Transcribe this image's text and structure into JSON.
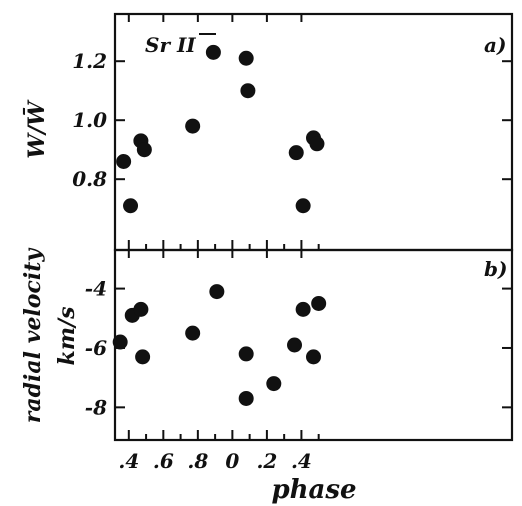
{
  "chart_data": [
    {
      "type": "scatter",
      "panel_label": "a)",
      "annotation": "Sr II",
      "ylabel": "W/W̄",
      "xlabel": "phase",
      "yticks": [
        "1.2",
        "1.0",
        "0.8"
      ],
      "ytick_values": [
        1.2,
        1.0,
        0.8
      ],
      "ylim": [
        0.56,
        1.36
      ],
      "xlim": [
        0.32,
        2.62
      ],
      "xticks": [
        ".4",
        ".6",
        ".8",
        "0",
        ".2",
        ".4"
      ],
      "xtick_values": [
        0.4,
        0.6,
        0.8,
        1.0,
        1.2,
        1.4
      ],
      "minor_xtick_values": [
        0.5,
        0.7,
        0.9,
        1.1,
        1.3,
        1.5
      ],
      "x": [
        0.37,
        0.41,
        0.47,
        0.49,
        0.77,
        0.89,
        1.08,
        1.09,
        1.37,
        1.41,
        1.47,
        1.49
      ],
      "y": [
        0.86,
        0.71,
        0.93,
        0.9,
        0.98,
        1.23,
        1.21,
        1.1,
        0.89,
        0.71,
        0.94,
        0.92
      ]
    },
    {
      "type": "scatter",
      "panel_label": "b)",
      "ylabel": "radial velocity",
      "ylabel2": "km/s",
      "xlabel": "phase",
      "yticks": [
        "-4",
        "-6",
        "-8"
      ],
      "ytick_values": [
        -4,
        -6,
        -8
      ],
      "ylim": [
        -9.1,
        -2.7
      ],
      "xlim": [
        0.32,
        2.62
      ],
      "xticks": [
        ".4",
        ".6",
        ".8",
        "0",
        ".2",
        ".4"
      ],
      "xtick_values": [
        0.4,
        0.6,
        0.8,
        1.0,
        1.2,
        1.4
      ],
      "minor_xtick_values": [
        0.5,
        0.7,
        0.9,
        1.1,
        1.3,
        1.5
      ],
      "x": [
        0.35,
        0.42,
        0.47,
        0.48,
        0.77,
        0.91,
        1.08,
        1.08,
        1.24,
        1.36,
        1.41,
        1.47,
        1.5
      ],
      "y": [
        -5.8,
        -4.9,
        -4.7,
        -6.3,
        -5.5,
        -4.1,
        -6.2,
        -7.7,
        -7.2,
        -5.9,
        -4.7,
        -6.3,
        -4.5
      ]
    }
  ]
}
